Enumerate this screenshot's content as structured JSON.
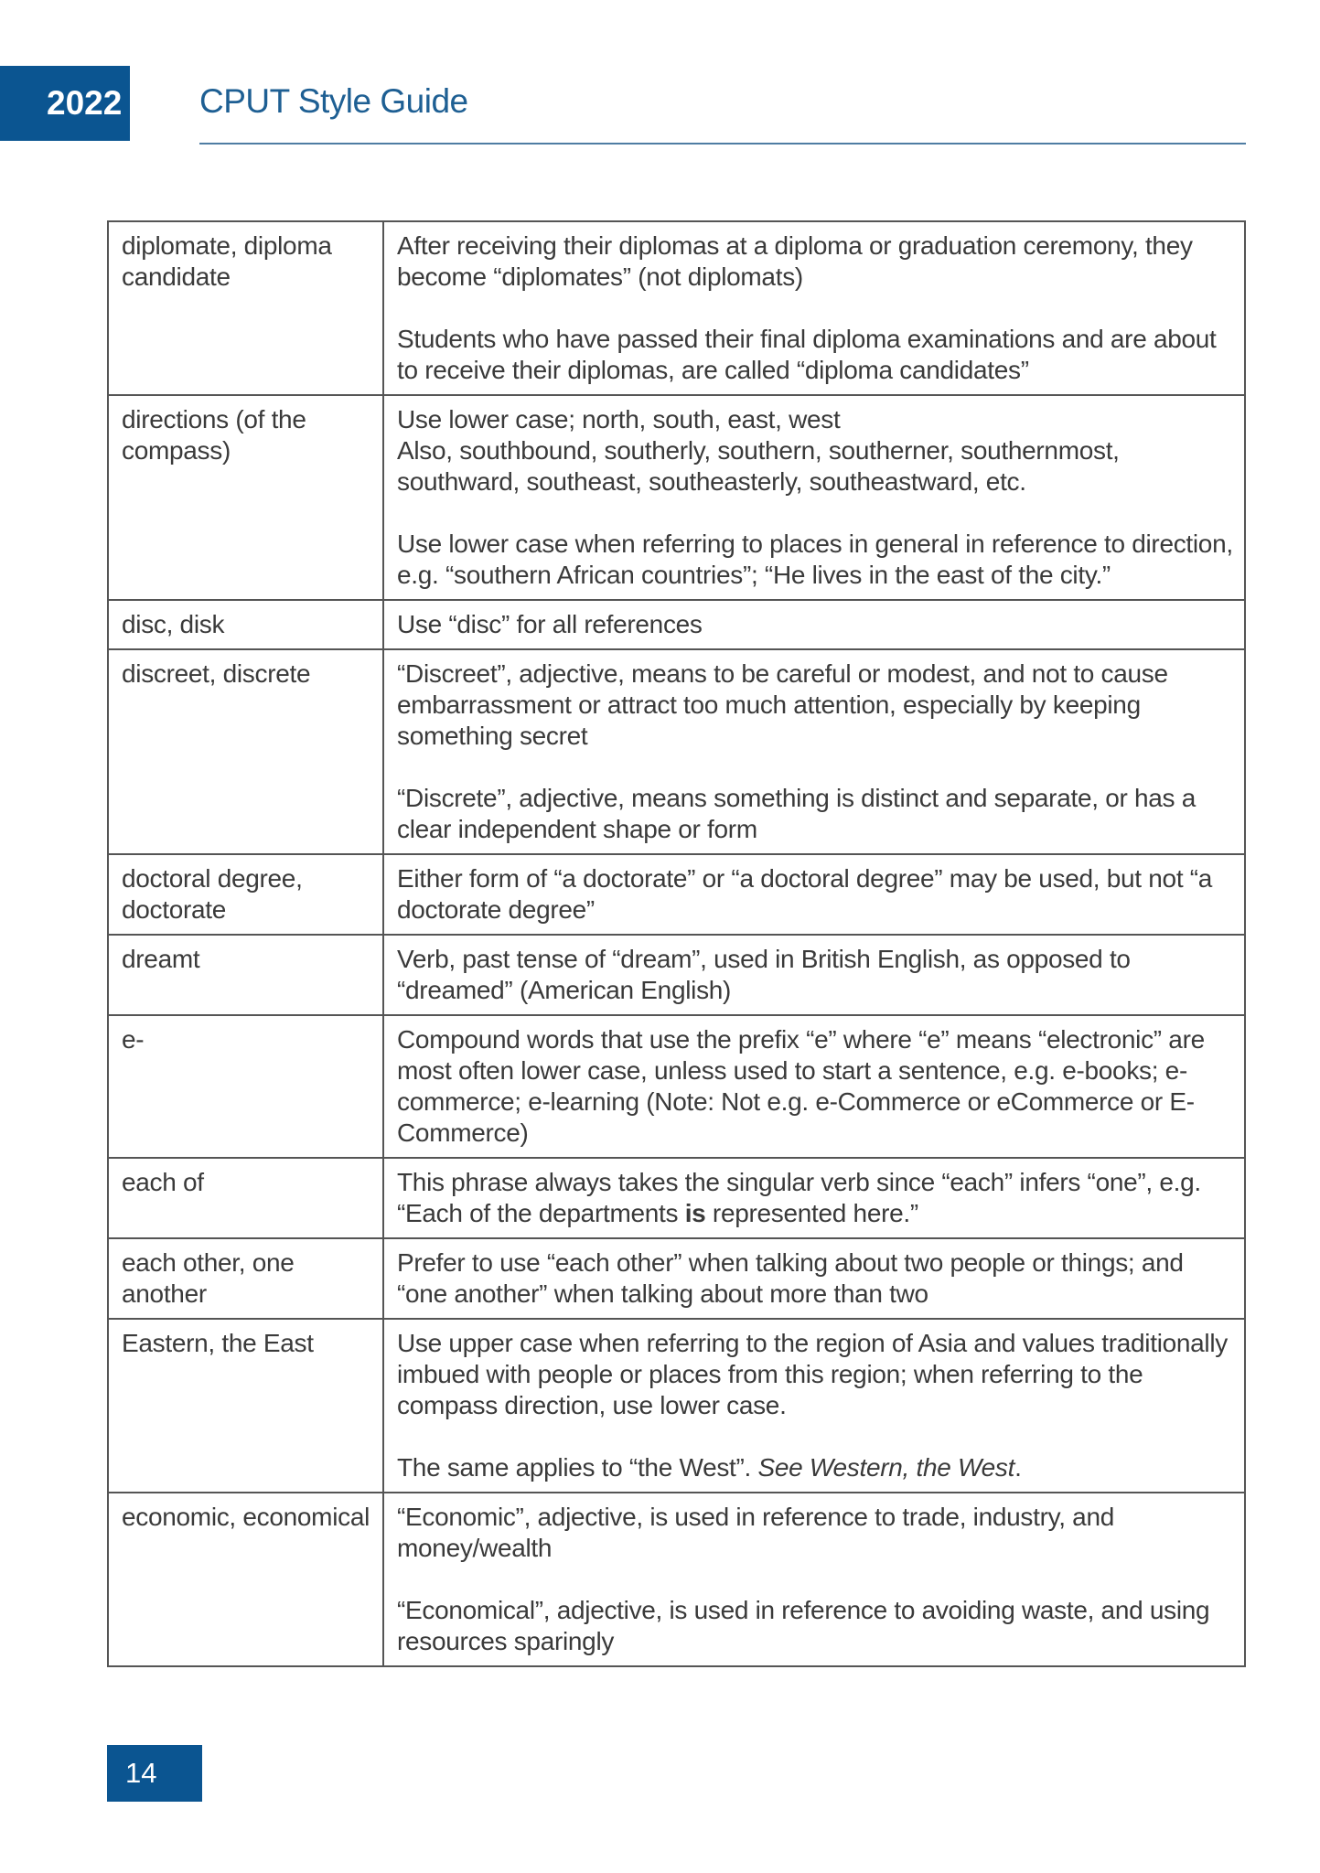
{
  "header": {
    "year": "2022",
    "title": "CPUT Style Guide"
  },
  "colors": {
    "brand_blue": "#0b5591",
    "title_blue": "#1e5f93"
  },
  "entries": [
    {
      "term": "diplomate, diploma candidate",
      "paragraphs": [
        "After receiving their diplomas at a diploma or graduation ceremony, they become “diplomates” (not diplomats)",
        "Students who have passed their final diploma examinations and are about to receive their diplomas, are called “diploma candidates”"
      ]
    },
    {
      "term": "directions (of the compass)",
      "paragraphs": [
        "Use lower case; north, south, east, west\nAlso, southbound, southerly, southern, southerner, southernmost, southward, southeast, southeasterly, southeastward, etc.",
        "Use lower case when referring to places in general in reference to direction, e.g. “southern African countries”; “He lives in the east of the city.”"
      ]
    },
    {
      "term": "disc, disk",
      "paragraphs": [
        "Use “disc” for all references"
      ]
    },
    {
      "term": "discreet, discrete",
      "paragraphs": [
        "“Discreet”, adjective, means to be careful or modest, and not to cause embarrassment or attract too much attention, especially by keeping something secret",
        "“Discrete”, adjective, means something is distinct and separate, or has a clear independent shape or form"
      ]
    },
    {
      "term": "doctoral degree, doctorate",
      "paragraphs": [
        "Either form of “a doctorate” or “a doctoral degree” may be used, but not “a doctorate degree”"
      ]
    },
    {
      "term": "dreamt",
      "paragraphs": [
        "Verb, past tense of “dream”, used in British English, as opposed to “dreamed” (American English)"
      ]
    },
    {
      "term": "e-",
      "paragraphs": [
        "Compound words that use the prefix “e” where “e” means “electronic” are most often lower case, unless used to start a sentence, e.g. e-books; e-commerce; e-learning (Note: Not e.g. e-Commerce or eCommerce or E-Commerce)"
      ]
    },
    {
      "term": "each of",
      "paragraphs": [
        [
          {
            "text": "This phrase always takes the singular verb since “each” infers “one”, e.g. “Each of the departments ",
            "style": "normal"
          },
          {
            "text": "is",
            "style": "bold"
          },
          {
            "text": " represented here.”",
            "style": "normal"
          }
        ]
      ]
    },
    {
      "term": "each other, one another",
      "paragraphs": [
        "Prefer to use “each other” when talking about two people or things; and “one another” when talking about more than two"
      ]
    },
    {
      "term": "Eastern, the East",
      "paragraphs": [
        "Use upper case when referring to the region of Asia and values traditionally imbued with people or places from this region; when referring to the compass direction, use lower case.",
        [
          {
            "text": "The same applies to “the West”. ",
            "style": "normal"
          },
          {
            "text": "See Western, the West",
            "style": "italic"
          },
          {
            "text": ".",
            "style": "normal"
          }
        ]
      ]
    },
    {
      "term": "economic, economical",
      "paragraphs": [
        "“Economic”, adjective, is used in reference to trade, industry, and money/wealth",
        "“Economical”, adjective, is used in reference to avoiding waste, and using resources sparingly"
      ]
    }
  ],
  "footer": {
    "page_number": "14"
  }
}
